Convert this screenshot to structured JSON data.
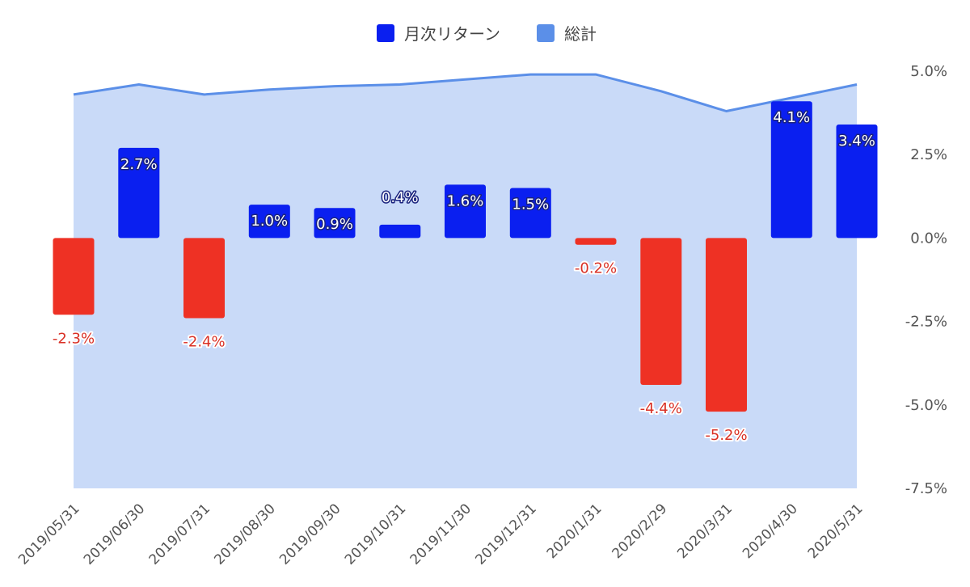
{
  "chart_data": {
    "type": "bar",
    "legend_position": "top",
    "categories": [
      "2019/05/31",
      "2019/06/30",
      "2019/07/31",
      "2019/08/30",
      "2019/09/30",
      "2019/10/31",
      "2019/11/30",
      "2019/12/31",
      "2020/1/31",
      "2020/2/29",
      "2020/3/31",
      "2020/4/30",
      "2020/5/31"
    ],
    "series": [
      {
        "name": "月次リターン",
        "type": "bar",
        "color_positive": "#0a1ff0",
        "color_negative": "#ee3124",
        "values": [
          -2.3,
          2.7,
          -2.4,
          1.0,
          0.9,
          0.4,
          1.6,
          1.5,
          -0.2,
          -4.4,
          -5.2,
          4.1,
          3.4
        ],
        "labels": [
          "-2.3%",
          "2.7%",
          "-2.4%",
          "1.0%",
          "0.9%",
          "0.4%",
          "1.6%",
          "1.5%",
          "-0.2%",
          "-4.4%",
          "-5.2%",
          "4.1%",
          "3.4%"
        ]
      },
      {
        "name": "総計",
        "type": "area",
        "color": "#5b8fe8",
        "fill": "#c9daf8",
        "values": [
          4.3,
          4.6,
          4.3,
          4.45,
          4.55,
          4.6,
          4.75,
          4.9,
          4.9,
          4.4,
          3.8,
          4.2,
          4.6
        ]
      }
    ],
    "y_axis": {
      "position": "right",
      "ylim": [
        -7.5,
        5.0
      ],
      "ticks": [
        5.0,
        2.5,
        0.0,
        -2.5,
        -5.0,
        -7.5
      ],
      "tick_labels": [
        "5.0%",
        "2.5%",
        "0.0%",
        "-2.5%",
        "-5.0%",
        "-7.5%"
      ]
    },
    "grid": false
  }
}
